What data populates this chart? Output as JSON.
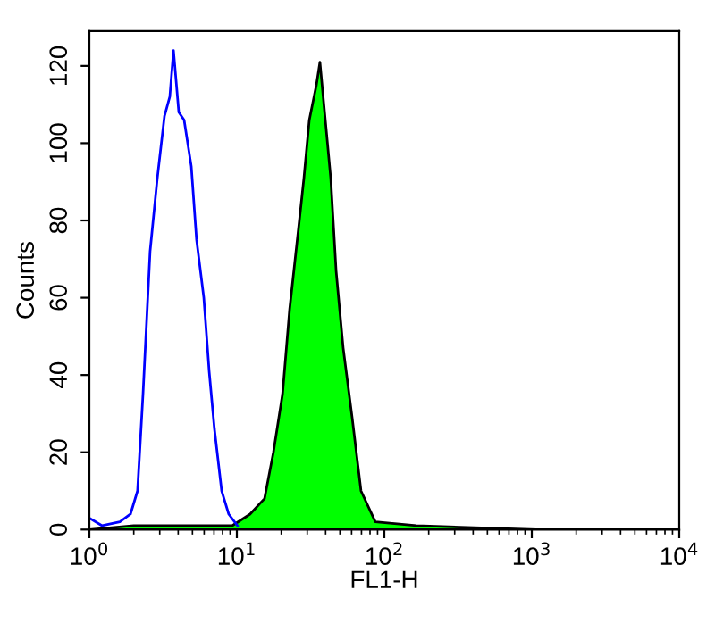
{
  "chart_data": {
    "type": "line",
    "xlabel": "FL1-H",
    "ylabel": "Counts",
    "log": "x",
    "xlim": [
      1,
      10000
    ],
    "ylim": [
      0,
      129
    ],
    "xticks": [
      {
        "value": 1,
        "label": "10$^{0}$"
      },
      {
        "value": 10,
        "label": "10$^{1}$"
      },
      {
        "value": 100,
        "label": "10$^{2}$"
      },
      {
        "value": 1000,
        "label": "10$^{3}$"
      },
      {
        "value": 10000,
        "label": "10$^{4}$"
      }
    ],
    "yticks": [
      0,
      20,
      40,
      60,
      80,
      100,
      120
    ],
    "grid": false,
    "legend": false,
    "series": [
      {
        "color": "#0000ff",
        "x": [
          1,
          1.22,
          1.61,
          1.9,
          2.12,
          2.31,
          2.58,
          2.89,
          3.23,
          3.51,
          3.72,
          4.04,
          4.39,
          4.91,
          5.33,
          5.97,
          6.49,
          7.05,
          7.89,
          8.81,
          10.1
        ],
        "values": [
          3,
          1,
          2,
          4,
          10,
          35,
          72,
          91,
          107,
          112,
          124,
          108,
          106,
          94,
          75,
          60,
          41,
          26,
          10,
          4,
          1
        ]
      },
      {
        "type": "area",
        "color": "#00ff00",
        "x": [
          1,
          2,
          5,
          9.3,
          12.3,
          15.4,
          17.7,
          20.4,
          22.8,
          26.2,
          28.5,
          31,
          34.6,
          36.6,
          39.8,
          43.3,
          47.1,
          52.6,
          60.5,
          69.5,
          86.9,
          165,
          1070,
          10000
        ],
        "values": [
          0,
          1,
          1,
          1,
          4,
          8,
          20,
          35,
          57,
          78,
          91,
          106,
          115,
          121,
          106,
          91,
          67,
          47,
          29,
          10,
          2,
          1,
          0,
          0
        ]
      }
    ]
  }
}
